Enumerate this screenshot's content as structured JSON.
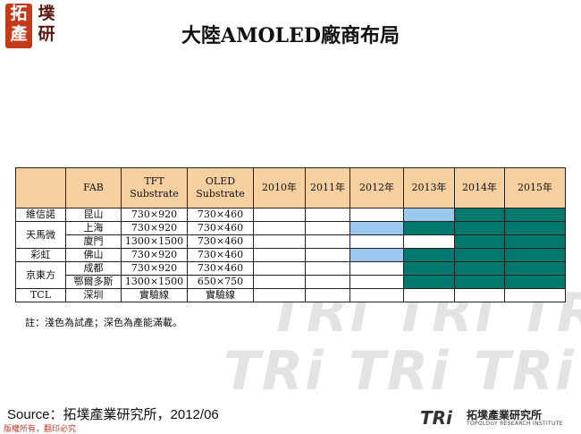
{
  "logo": {
    "stamp": [
      "拓",
      "產"
    ],
    "side": [
      "墣",
      "研"
    ]
  },
  "title": "大陸AMOLED廠商布局",
  "watermark": "TRi",
  "table": {
    "headers": [
      "",
      "FAB",
      "TFT Substrate",
      "OLED Substrate",
      "2010年",
      "2011年",
      "2012年",
      "2013年",
      "2014年",
      "2015年"
    ],
    "companies": [
      "維信諾",
      "天馬微",
      "彩虹",
      "京東方",
      "TCL"
    ],
    "rows": [
      {
        "fab": "昆山",
        "tft": "730×920",
        "oled": "730×460",
        "years": [
          "",
          "",
          "",
          "light",
          "dark",
          "dark"
        ]
      },
      {
        "fab": "上海",
        "tft": "730×920",
        "oled": "730×460",
        "years": [
          "",
          "",
          "light",
          "dark",
          "dark",
          "dark"
        ]
      },
      {
        "fab": "廈門",
        "tft": "1300×1500",
        "oled": "730×460",
        "years": [
          "",
          "",
          "",
          "",
          "dark",
          "dark"
        ]
      },
      {
        "fab": "佛山",
        "tft": "730×920",
        "oled": "730×460",
        "years": [
          "",
          "",
          "light",
          "dark",
          "dark",
          "dark"
        ]
      },
      {
        "fab": "成都",
        "tft": "730×920",
        "oled": "730×460",
        "years": [
          "",
          "",
          "",
          "dark",
          "dark",
          "dark"
        ]
      },
      {
        "fab": "鄂爾多斯",
        "tft": "1300×1500",
        "oled": "650×750",
        "years": [
          "",
          "",
          "",
          "dark",
          "dark",
          "dark"
        ]
      },
      {
        "fab": "深圳",
        "tft": "實驗線",
        "oled": "實驗線",
        "years": [
          "",
          "",
          "",
          "",
          "",
          ""
        ]
      }
    ],
    "colors": {
      "header": "#f7d0a0",
      "light": "#9cc8f0",
      "dark": "#00786b"
    }
  },
  "note": "註：淺色為試產；深色為產能滿載。",
  "source": "Source：拓墣產業研究所，2012/06",
  "copyright": "版權所有，翻印必究",
  "brand": {
    "mark": "TRi",
    "name_cn": "拓墣產業研究所",
    "name_en": "TOPOLOGY RESEARCH INSTITUTE"
  }
}
